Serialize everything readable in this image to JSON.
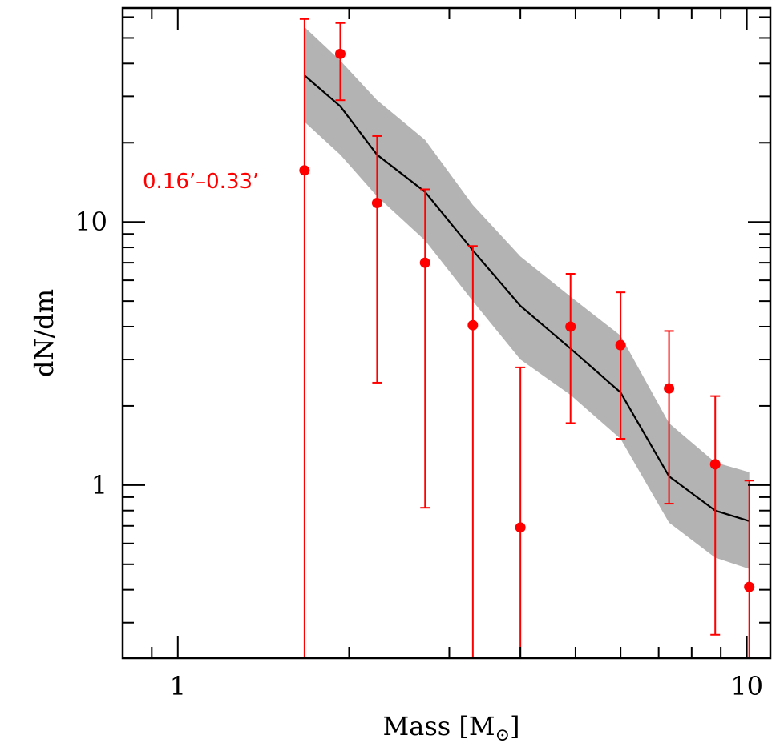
{
  "chart_data": {
    "type": "scatter",
    "xscale": "log",
    "yscale": "log",
    "xlim": [
      0.8,
      11
    ],
    "ylim": [
      0.22,
      65
    ],
    "xlabel": "Mass [M",
    "xlabel_sub": "⊙",
    "xlabel_end": "]",
    "ylabel": "dN/dm",
    "annotation": "0.16’–0.33’",
    "colors": {
      "points": "#ff0000",
      "model": "#000000",
      "band": "#b3b3b3",
      "frame": "#000000"
    },
    "x_tick_labels": [
      {
        "value": 1,
        "label": "1"
      },
      {
        "value": 10,
        "label": "10"
      }
    ],
    "y_tick_labels": [
      {
        "value": 1,
        "label": "1"
      },
      {
        "value": 10,
        "label": "10"
      }
    ],
    "series": [
      {
        "name": "model",
        "style": "line",
        "x": [
          1.67,
          1.93,
          2.24,
          2.72,
          3.3,
          4.0,
          4.9,
          6.0,
          7.3,
          8.8,
          10.1
        ],
        "values": [
          36,
          27.5,
          18,
          13,
          7.8,
          4.8,
          3.3,
          2.25,
          1.08,
          0.8,
          0.73
        ]
      },
      {
        "name": "model-band",
        "style": "band",
        "x": [
          1.67,
          1.93,
          2.24,
          2.72,
          3.3,
          4.0,
          4.9,
          6.0,
          7.3,
          8.8,
          10.1
        ],
        "lower": [
          24,
          18,
          12.5,
          8.5,
          5.0,
          3.0,
          2.2,
          1.5,
          0.72,
          0.53,
          0.48
        ],
        "upper": [
          55,
          41,
          29,
          20.5,
          11.6,
          7.4,
          5.2,
          3.7,
          1.72,
          1.22,
          1.12
        ]
      },
      {
        "name": "data",
        "style": "points",
        "x": [
          1.67,
          1.93,
          2.24,
          2.72,
          3.3,
          4.0,
          4.9,
          6.0,
          7.3,
          8.8,
          10.1
        ],
        "values": [
          15.7,
          43.5,
          11.8,
          7.0,
          4.05,
          0.69,
          4.0,
          3.4,
          2.33,
          1.2,
          0.41
        ],
        "err_low": [
          0.22,
          29.0,
          2.45,
          0.82,
          0.22,
          0.22,
          1.72,
          1.5,
          0.85,
          0.27,
          0.22
        ],
        "err_high": [
          59,
          57,
          21.2,
          13.3,
          8.1,
          2.8,
          6.35,
          5.4,
          3.85,
          2.18,
          1.04
        ]
      }
    ]
  }
}
